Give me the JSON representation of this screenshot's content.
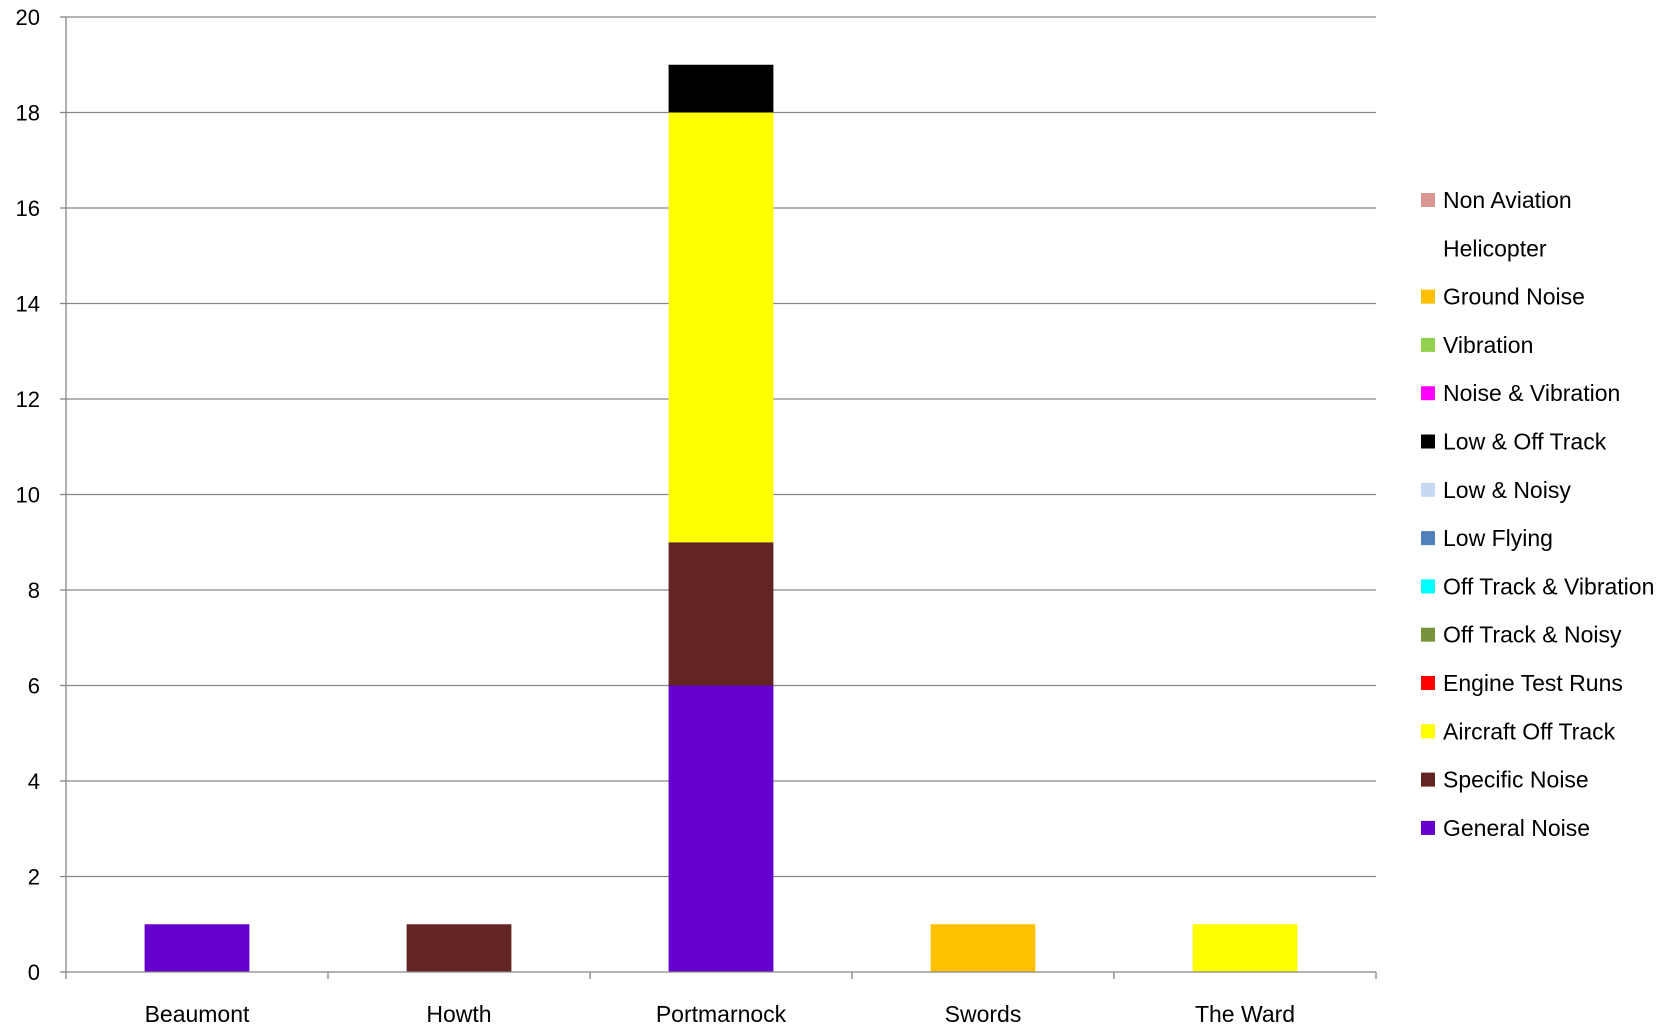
{
  "chart_data": {
    "type": "bar",
    "stacked": true,
    "categories": [
      "Beaumont",
      "Howth",
      "Portmarnock",
      "Swords",
      "The Ward"
    ],
    "ylim": [
      0,
      20
    ],
    "yticks": [
      0,
      2,
      4,
      6,
      8,
      10,
      12,
      14,
      16,
      18,
      20
    ],
    "grid": true,
    "legend": "right",
    "title": "",
    "xlabel": "",
    "ylabel": "",
    "series": [
      {
        "name": "General Noise",
        "color": "#6600CC",
        "values": [
          1,
          0,
          6,
          0,
          0
        ]
      },
      {
        "name": "Specific Noise",
        "color": "#632523",
        "values": [
          0,
          1,
          3,
          0,
          0
        ]
      },
      {
        "name": "Aircraft Off Track",
        "color": "#FFFF00",
        "values": [
          0,
          0,
          9,
          0,
          1
        ]
      },
      {
        "name": "Engine Test Runs",
        "color": "#FF0000",
        "values": [
          0,
          0,
          0,
          0,
          0
        ]
      },
      {
        "name": "Off Track & Noisy",
        "color": "#77933C",
        "values": [
          0,
          0,
          0,
          0,
          0
        ]
      },
      {
        "name": "Off Track & Vibration",
        "color": "#00FFFF",
        "values": [
          0,
          0,
          0,
          0,
          0
        ]
      },
      {
        "name": "Low Flying",
        "color": "#4F81BD",
        "values": [
          0,
          0,
          0,
          0,
          0
        ]
      },
      {
        "name": "Low & Noisy",
        "color": "#C6D9F1",
        "values": [
          0,
          0,
          0,
          0,
          0
        ]
      },
      {
        "name": "Low & Off Track",
        "color": "#000000",
        "values": [
          0,
          0,
          1,
          0,
          0
        ]
      },
      {
        "name": "Noise & Vibration",
        "color": "#FF00FF",
        "values": [
          0,
          0,
          0,
          0,
          0
        ]
      },
      {
        "name": "Vibration",
        "color": "#92D050",
        "values": [
          0,
          0,
          0,
          0,
          0
        ]
      },
      {
        "name": "Ground Noise",
        "color": "#FFC000",
        "values": [
          0,
          0,
          0,
          1,
          0
        ]
      },
      {
        "name": "Helicopter",
        "color": "#FFFFFF",
        "values": [
          0,
          0,
          0,
          0,
          0
        ]
      },
      {
        "name": "Non Aviation",
        "color": "#D99694",
        "values": [
          0,
          0,
          0,
          0,
          0
        ]
      }
    ]
  }
}
